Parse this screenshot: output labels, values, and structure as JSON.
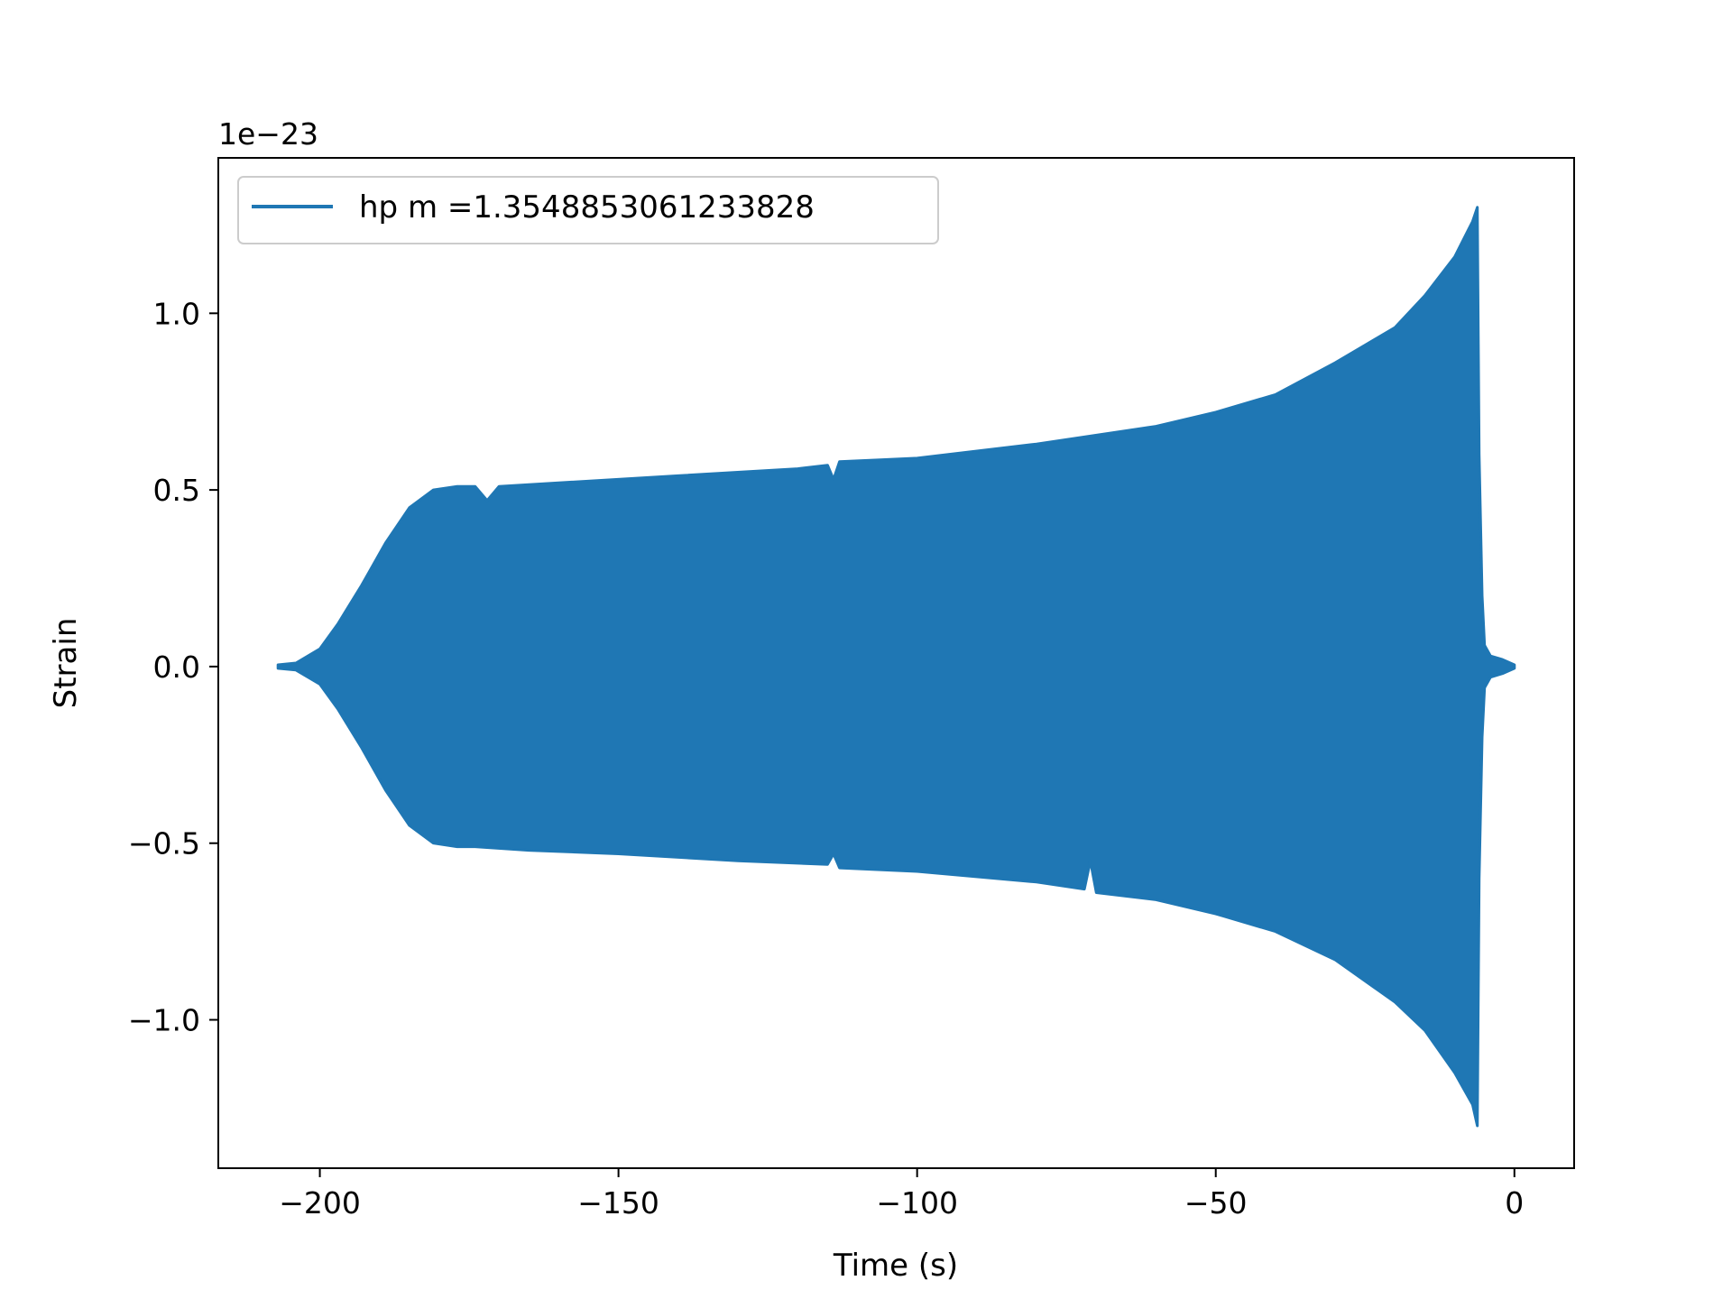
{
  "chart_data": {
    "type": "area",
    "xlabel": "Time (s)",
    "ylabel": "Strain",
    "y_offset_label": "1e−23",
    "xlim": [
      -217,
      10
    ],
    "ylim": [
      -1.42,
      1.44
    ],
    "x_ticks": [
      -200,
      -150,
      -100,
      -50,
      0
    ],
    "x_tick_labels": [
      "−200",
      "−150",
      "−100",
      "−50",
      "0"
    ],
    "y_ticks": [
      -1.0,
      -0.5,
      0.0,
      0.5,
      1.0
    ],
    "y_tick_labels": [
      "−1.0",
      "−0.5",
      "0.0",
      "0.5",
      "1.0"
    ],
    "grid": false,
    "legend_position": "upper-left",
    "series": [
      {
        "name": "hp m =1.3548853061233828",
        "color": "#1f77b4",
        "upper": [
          [
            -207,
            0.005
          ],
          [
            -204,
            0.01
          ],
          [
            -200,
            0.05
          ],
          [
            -197,
            0.12
          ],
          [
            -193,
            0.23
          ],
          [
            -189,
            0.35
          ],
          [
            -185,
            0.45
          ],
          [
            -181,
            0.5
          ],
          [
            -177,
            0.51
          ],
          [
            -174,
            0.51
          ],
          [
            -172,
            0.47
          ],
          [
            -170,
            0.51
          ],
          [
            -160,
            0.52
          ],
          [
            -140,
            0.54
          ],
          [
            -120,
            0.56
          ],
          [
            -115,
            0.57
          ],
          [
            -114,
            0.53
          ],
          [
            -113,
            0.58
          ],
          [
            -100,
            0.59
          ],
          [
            -80,
            0.63
          ],
          [
            -60,
            0.68
          ],
          [
            -50,
            0.72
          ],
          [
            -40,
            0.77
          ],
          [
            -30,
            0.86
          ],
          [
            -20,
            0.96
          ],
          [
            -15,
            1.05
          ],
          [
            -10,
            1.16
          ],
          [
            -7,
            1.26
          ],
          [
            -6.2,
            1.3
          ],
          [
            -5.9,
            0.6
          ],
          [
            -5.4,
            0.2
          ],
          [
            -5,
            0.06
          ],
          [
            -4,
            0.03
          ],
          [
            -2,
            0.02
          ],
          [
            0,
            0.005
          ]
        ],
        "lower": [
          [
            -207,
            -0.005
          ],
          [
            -204,
            -0.01
          ],
          [
            -200,
            -0.05
          ],
          [
            -197,
            -0.12
          ],
          [
            -193,
            -0.23
          ],
          [
            -189,
            -0.35
          ],
          [
            -185,
            -0.45
          ],
          [
            -181,
            -0.5
          ],
          [
            -177,
            -0.51
          ],
          [
            -174,
            -0.51
          ],
          [
            -165,
            -0.52
          ],
          [
            -150,
            -0.53
          ],
          [
            -130,
            -0.55
          ],
          [
            -115,
            -0.56
          ],
          [
            -114,
            -0.53
          ],
          [
            -113,
            -0.57
          ],
          [
            -100,
            -0.58
          ],
          [
            -80,
            -0.61
          ],
          [
            -72,
            -0.63
          ],
          [
            -71,
            -0.55
          ],
          [
            -70,
            -0.64
          ],
          [
            -60,
            -0.66
          ],
          [
            -50,
            -0.7
          ],
          [
            -40,
            -0.75
          ],
          [
            -30,
            -0.83
          ],
          [
            -20,
            -0.95
          ],
          [
            -15,
            -1.03
          ],
          [
            -10,
            -1.15
          ],
          [
            -7,
            -1.24
          ],
          [
            -6.2,
            -1.3
          ],
          [
            -5.9,
            -0.6
          ],
          [
            -5.4,
            -0.2
          ],
          [
            -5,
            -0.06
          ],
          [
            -4,
            -0.03
          ],
          [
            -2,
            -0.02
          ],
          [
            0,
            -0.005
          ]
        ]
      }
    ]
  }
}
